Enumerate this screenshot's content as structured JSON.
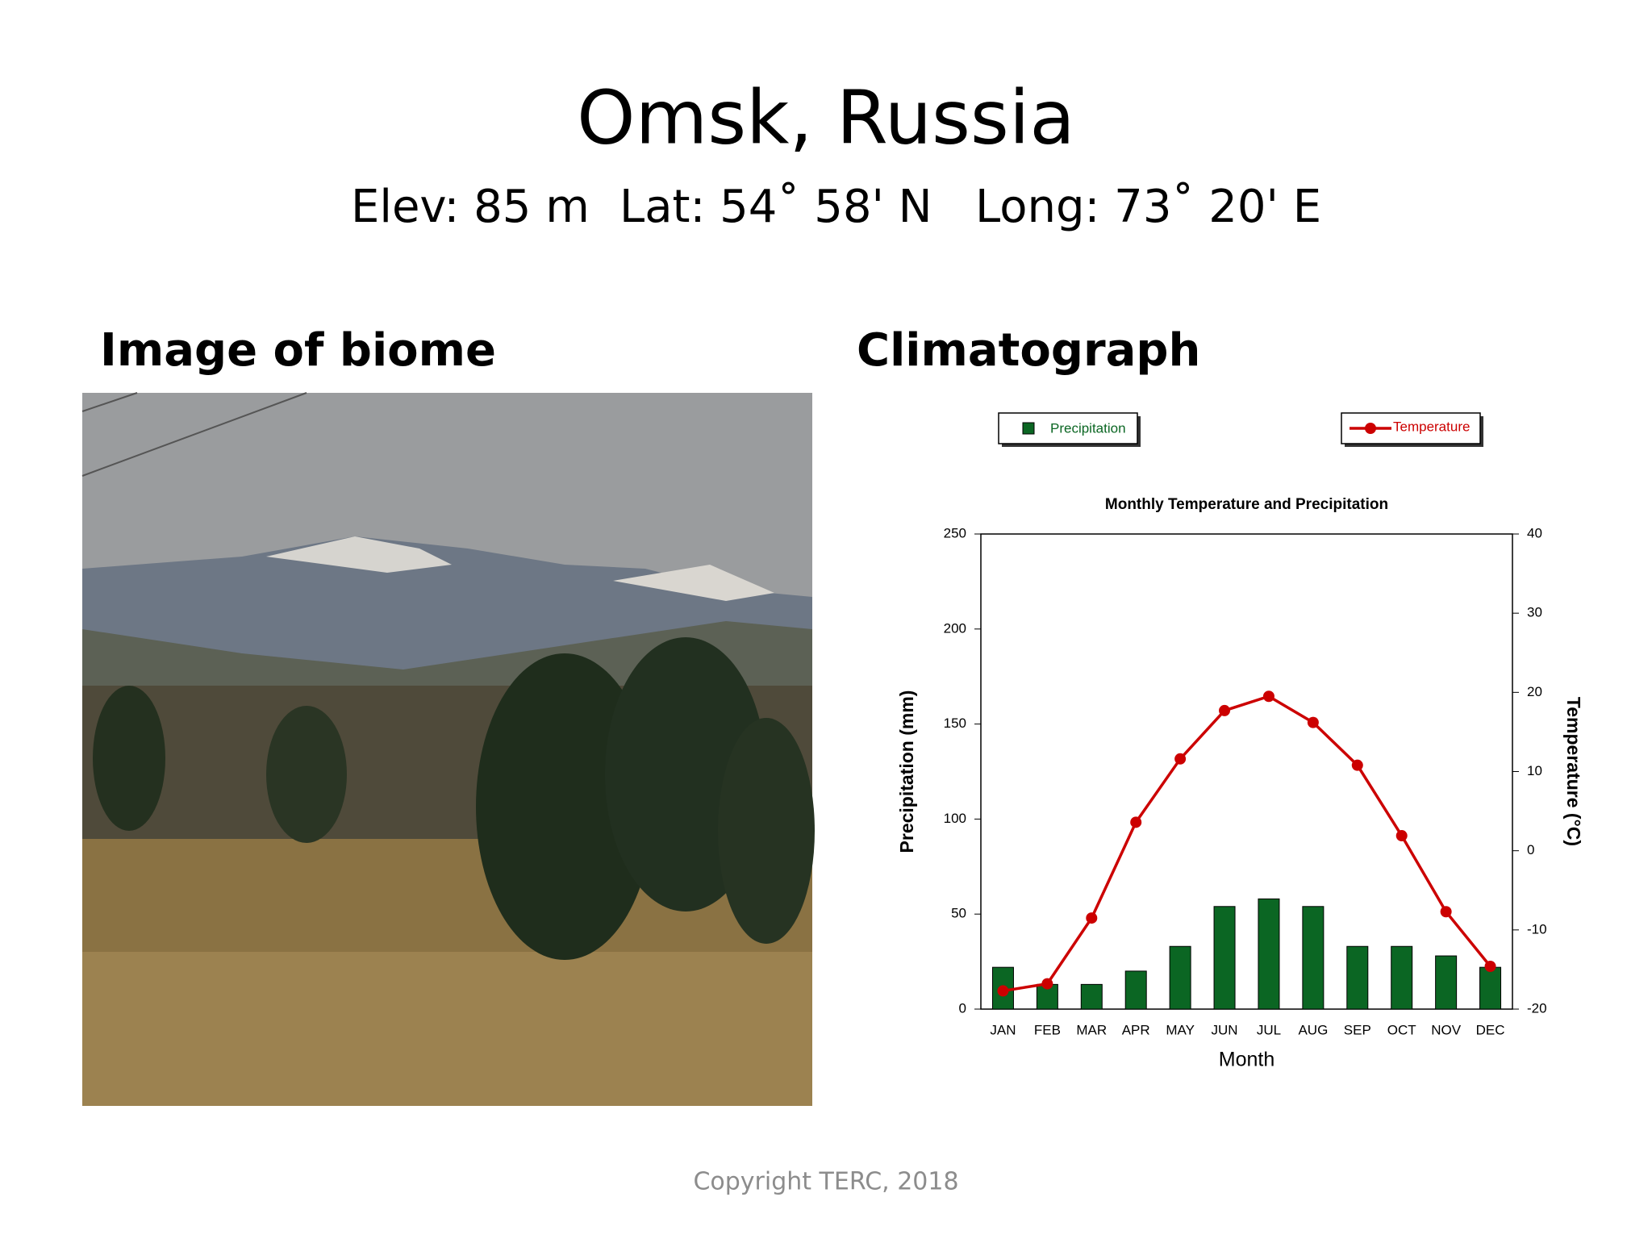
{
  "header": {
    "title": "Omsk, Russia",
    "elevation": "Elev: 85 m",
    "latitude": "Lat: 54˚ 58' N",
    "longitude": "Long: 73˚ 20' E"
  },
  "sections": {
    "image_heading": "Image of biome",
    "chart_heading": "Climatograph"
  },
  "chart_data": {
    "type": "bar",
    "title": "Monthly Temperature and Precipitation",
    "x_label": "Month",
    "y_label": "Precipitation (mm)",
    "y2_label": "Temperature (°C)",
    "categories": [
      "JAN",
      "FEB",
      "MAR",
      "APR",
      "MAY",
      "JUN",
      "JUL",
      "AUG",
      "SEP",
      "OCT",
      "NOV",
      "DEC"
    ],
    "series": [
      {
        "name": "Precipitation",
        "type": "bar",
        "color": "#0b6623",
        "values": [
          22,
          13,
          13,
          20,
          33,
          54,
          58,
          54,
          33,
          33,
          28,
          22
        ]
      },
      {
        "name": "Temperature",
        "type": "line",
        "axis": "y2",
        "color": "#cc0000",
        "values": [
          -17.7,
          -16.8,
          -8.5,
          3.6,
          11.6,
          17.7,
          19.5,
          16.2,
          10.8,
          1.9,
          -7.7,
          -14.6
        ]
      }
    ],
    "ylim": [
      0,
      250
    ],
    "yticks": [
      0,
      50,
      100,
      150,
      200,
      250
    ],
    "y2lim": [
      -20,
      40
    ],
    "y2ticks": [
      -20,
      -10,
      0,
      10,
      20,
      30,
      40
    ]
  },
  "footer": "Copyright TERC, 2018"
}
